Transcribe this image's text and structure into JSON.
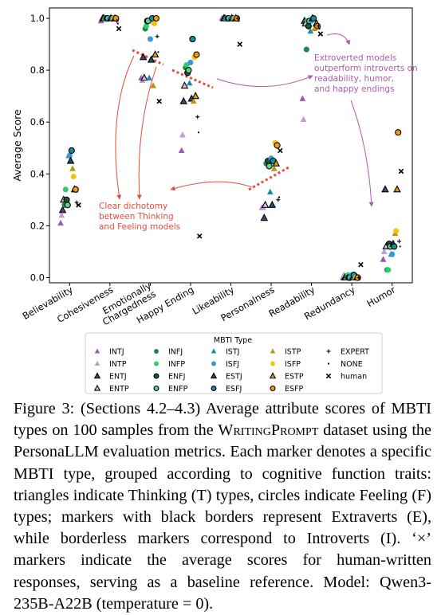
{
  "chart_data": {
    "type": "scatter",
    "ylabel": "Average Score",
    "xlabel": "",
    "ylim": [
      -0.02,
      1.04
    ],
    "yticks": [
      "0.0",
      "0.2",
      "0.4",
      "0.6",
      "0.8",
      "1.0"
    ],
    "grid": false,
    "categories": [
      "Believability",
      "Cohesiveness",
      "Emotionally Chargedness",
      "Happy Ending",
      "Likeability",
      "Personalness",
      "Readability",
      "Redundancy",
      "Humor"
    ],
    "legend": {
      "title": "MBTI Type",
      "placement": "bottom-center",
      "entries": [
        {
          "name": "INTJ",
          "marker": "triangle",
          "color": "#9b59b6",
          "border": false
        },
        {
          "name": "INTP",
          "marker": "triangle",
          "color": "#c39bd3",
          "border": false
        },
        {
          "name": "ENTJ",
          "marker": "triangle",
          "color": "#5d3a7a",
          "border": true
        },
        {
          "name": "ENTP",
          "marker": "triangle",
          "color": "#d7bde2",
          "border": true
        },
        {
          "name": "INFJ",
          "marker": "circle",
          "color": "#1e8449",
          "border": false
        },
        {
          "name": "INFP",
          "marker": "circle",
          "color": "#2ecc71",
          "border": false
        },
        {
          "name": "ENFJ",
          "marker": "circle",
          "color": "#145a32",
          "border": true
        },
        {
          "name": "ENFP",
          "marker": "circle",
          "color": "#58d68d",
          "border": true
        },
        {
          "name": "ISTJ",
          "marker": "triangle",
          "color": "#1a8ab0",
          "border": false
        },
        {
          "name": "ISFJ",
          "marker": "circle",
          "color": "#3498db",
          "border": false
        },
        {
          "name": "ESTJ",
          "marker": "triangle",
          "color": "#1b4f72",
          "border": true
        },
        {
          "name": "ESFJ",
          "marker": "circle",
          "color": "#148f9c",
          "border": true
        },
        {
          "name": "ISTP",
          "marker": "triangle",
          "color": "#b7950b",
          "border": false
        },
        {
          "name": "ISFP",
          "marker": "circle",
          "color": "#f1c40f",
          "border": false
        },
        {
          "name": "ESTP",
          "marker": "triangle",
          "color": "#d4a017",
          "border": true
        },
        {
          "name": "ESFP",
          "marker": "circle",
          "color": "#f39c12",
          "border": true
        },
        {
          "name": "EXPERT",
          "marker": "plus",
          "color": "#000000",
          "border": false
        },
        {
          "name": "NONE",
          "marker": "dot",
          "color": "#000000",
          "border": false
        },
        {
          "name": "human",
          "marker": "x",
          "color": "#000000",
          "border": false
        }
      ]
    },
    "series": [
      {
        "name": "INTJ",
        "values": [
          0.21,
          0.99,
          0.77,
          0.49,
          1.0,
          0.27,
          0.69,
          0.0,
          0.07
        ]
      },
      {
        "name": "INTP",
        "values": [
          0.24,
          1.0,
          0.76,
          0.55,
          1.0,
          0.27,
          0.61,
          0.01,
          0.1
        ]
      },
      {
        "name": "ENTJ",
        "values": [
          0.26,
          1.0,
          0.85,
          0.68,
          1.0,
          0.23,
          0.99,
          0.0,
          0.34
        ]
      },
      {
        "name": "ENTP",
        "values": [
          0.3,
          1.0,
          0.77,
          0.74,
          1.0,
          0.28,
          0.98,
          0.0,
          0.12
        ]
      },
      {
        "name": "INFJ",
        "values": [
          0.28,
          1.0,
          0.96,
          0.81,
          1.0,
          0.44,
          0.88,
          0.0,
          0.03
        ]
      },
      {
        "name": "INFP",
        "values": [
          0.34,
          1.0,
          0.97,
          0.82,
          1.0,
          0.45,
          0.99,
          0.01,
          0.03
        ]
      },
      {
        "name": "ENFJ",
        "values": [
          0.3,
          1.0,
          0.99,
          0.79,
          1.0,
          0.45,
          0.97,
          0.0,
          0.13
        ]
      },
      {
        "name": "ENFP",
        "values": [
          0.28,
          1.0,
          0.99,
          0.8,
          1.0,
          0.43,
          0.99,
          0.0,
          0.12
        ]
      },
      {
        "name": "ISTJ",
        "values": [
          0.47,
          1.0,
          0.77,
          0.75,
          1.0,
          0.33,
          0.95,
          0.0,
          0.09
        ]
      },
      {
        "name": "ISFJ",
        "values": [
          0.47,
          1.0,
          0.92,
          0.83,
          1.0,
          0.46,
          0.99,
          0.01,
          0.09
        ]
      },
      {
        "name": "ESTJ",
        "values": [
          0.45,
          1.0,
          0.84,
          0.69,
          1.0,
          0.28,
          1.0,
          0.0,
          0.13
        ]
      },
      {
        "name": "ESFJ",
        "values": [
          0.49,
          1.0,
          1.0,
          0.92,
          1.0,
          0.45,
          1.0,
          0.01,
          0.12
        ]
      },
      {
        "name": "ISTP",
        "values": [
          0.42,
          1.0,
          0.74,
          0.68,
          1.0,
          0.42,
          0.96,
          0.0,
          0.17
        ]
      },
      {
        "name": "ISFP",
        "values": [
          0.39,
          1.0,
          0.98,
          0.85,
          1.0,
          0.52,
          0.97,
          0.0,
          0.18
        ]
      },
      {
        "name": "ESTP",
        "values": [
          0.34,
          1.0,
          0.86,
          0.7,
          1.0,
          0.44,
          0.98,
          0.0,
          0.34
        ]
      },
      {
        "name": "ESFP",
        "values": [
          0.34,
          1.0,
          1.0,
          0.86,
          1.0,
          0.51,
          0.97,
          0.0,
          0.56
        ]
      },
      {
        "name": "EXPERT",
        "values": [
          0.29,
          0.99,
          0.93,
          0.62,
          1.0,
          0.3,
          0.97,
          0.0,
          0.14
        ]
      },
      {
        "name": "NONE",
        "values": [
          0.28,
          0.98,
          0.87,
          0.56,
          0.99,
          0.31,
          0.96,
          0.0,
          0.12
        ]
      },
      {
        "name": "human",
        "values": [
          0.28,
          0.96,
          0.68,
          0.16,
          0.9,
          0.49,
          0.94,
          0.05,
          0.41
        ]
      }
    ],
    "annotations": [
      {
        "text": [
          "Extroverted models",
          "outperform introverts on",
          "readability, humor,",
          "and happy endings"
        ],
        "color": "#b05aa6"
      },
      {
        "text": [
          "Clear dichotomy",
          "between Thinking",
          "and Feeling models"
        ],
        "color": "#e74c3c"
      }
    ]
  },
  "caption": {
    "figure_label": "Figure 3:",
    "part1": "(Sections 4.2–4.3) Average attribute scores of MBTI types on 100 samples from the ",
    "dataset": "WritingPrompt",
    "part2": " dataset using the PersonaLLM evaluation metrics. Each marker denotes a specific MBTI type, grouped according to cognitive function traits: triangles indicate Thinking (T) types, circles indicate Feeling (F) types; markers with black borders represent Extraverts (E), while borderless markers correspond to Introverts (I). ‘×’ markers indicate the average scores for human-written responses, serving as a baseline reference. Model: Qwen3-235B-A22B (temperature = 0)."
  }
}
